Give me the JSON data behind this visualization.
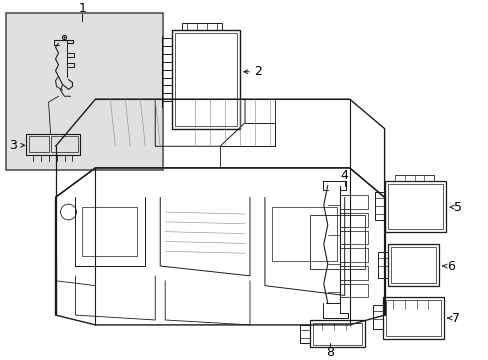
{
  "bg_color": "#ffffff",
  "line_color": "#1a1a1a",
  "fig_width": 4.89,
  "fig_height": 3.6,
  "dpi": 100,
  "inset_bg": "#e0e0e0",
  "inset_border": "#555555"
}
